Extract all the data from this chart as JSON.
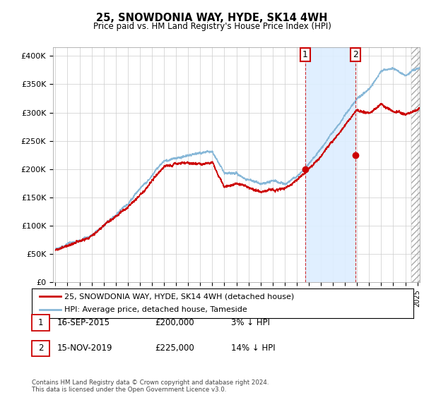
{
  "title": "25, SNOWDONIA WAY, HYDE, SK14 4WH",
  "subtitle": "Price paid vs. HM Land Registry's House Price Index (HPI)",
  "ylabel_ticks": [
    "£0",
    "£50K",
    "£100K",
    "£150K",
    "£200K",
    "£250K",
    "£300K",
    "£350K",
    "£400K"
  ],
  "ytick_vals": [
    0,
    50000,
    100000,
    150000,
    200000,
    250000,
    300000,
    350000,
    400000
  ],
  "ylim": [
    0,
    415000
  ],
  "xlim_start": 1994.8,
  "xlim_end": 2025.2,
  "sale1_year": 2015.71,
  "sale1_price": 200000,
  "sale1_label": "16-SEP-2015",
  "sale1_amount": "£200,000",
  "sale1_note": "3% ↓ HPI",
  "sale2_year": 2019.87,
  "sale2_price": 225000,
  "sale2_label": "15-NOV-2019",
  "sale2_amount": "£225,000",
  "sale2_note": "14% ↓ HPI",
  "legend_line1": "25, SNOWDONIA WAY, HYDE, SK14 4WH (detached house)",
  "legend_line2": "HPI: Average price, detached house, Tameside",
  "footer": "Contains HM Land Registry data © Crown copyright and database right 2024.\nThis data is licensed under the Open Government Licence v3.0.",
  "line_color_red": "#cc0000",
  "line_color_blue": "#88b8d8",
  "shade_color": "#ddeeff",
  "background_color": "#ffffff",
  "grid_color": "#cccccc"
}
